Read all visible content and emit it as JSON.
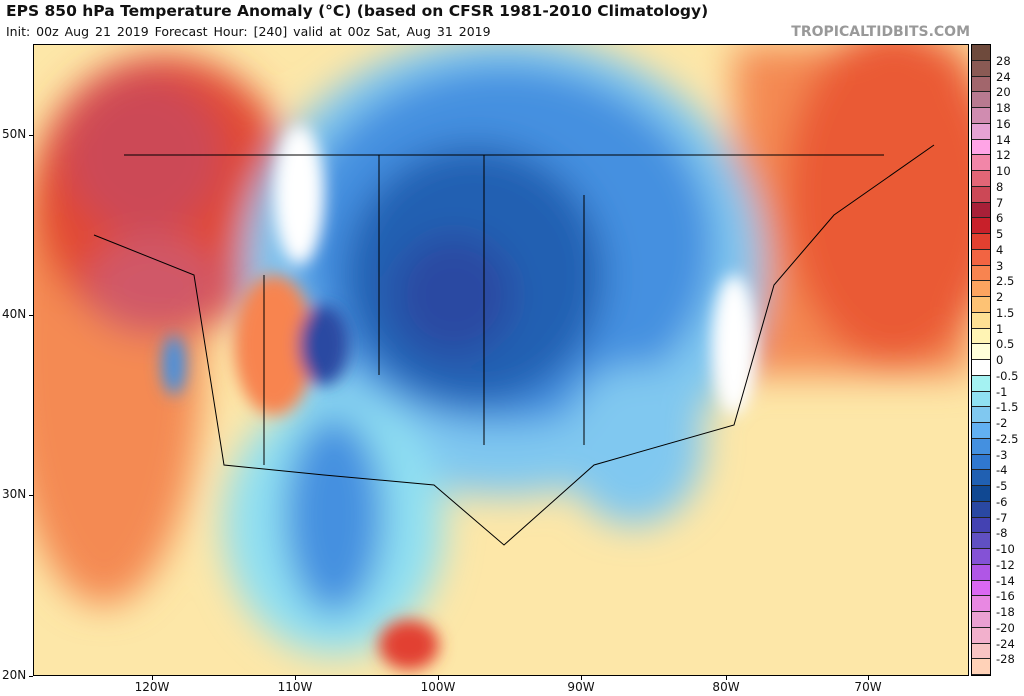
{
  "header": {
    "title": "EPS 850 hPa Temperature Anomaly (°C) (based on CFSR 1981-2010 Climatology)",
    "subtitle": "Init: 00z Aug 21 2019   Forecast Hour: [240]   valid at 00z Sat, Aug 31 2019",
    "brand": "TROPICALTIDBITS.COM"
  },
  "axes": {
    "lat": [
      "50N",
      "40N",
      "30N",
      "20N"
    ],
    "lon": [
      "120W",
      "110W",
      "100W",
      "90W",
      "80W",
      "70W"
    ]
  },
  "colorbar": {
    "labels": [
      "28",
      "24",
      "20",
      "18",
      "16",
      "14",
      "12",
      "10",
      "8",
      "7",
      "6",
      "5",
      "4",
      "3",
      "2.5",
      "2",
      "1.5",
      "1",
      "0.5",
      "0",
      "-0.5",
      "-1",
      "-1.5",
      "-2",
      "-2.5",
      "-3",
      "-4",
      "-5",
      "-6",
      "-7",
      "-8",
      "-10",
      "-12",
      "-14",
      "-16",
      "-18",
      "-20",
      "-24",
      "-28"
    ],
    "colors": [
      "#6e4a3c",
      "#8a5a54",
      "#a2666c",
      "#b87a90",
      "#d08cb0",
      "#e6a2d4",
      "#ffa4e6",
      "#f286a8",
      "#e26676",
      "#cc4856",
      "#a82038",
      "#c8202a",
      "#e24030",
      "#f26442",
      "#f88450",
      "#fca460",
      "#fdc274",
      "#fee094",
      "#fff4b4",
      "#ffffd8",
      "#ffffff",
      "#a4f2f2",
      "#90e0f2",
      "#80c8f0",
      "#62b0f2",
      "#4490e0",
      "#3078d0",
      "#2060b2",
      "#104892",
      "#2a48a2",
      "#4442b2",
      "#6050c2",
      "#8452d6",
      "#b056e6",
      "#da68f2",
      "#e888e2",
      "#eaa0d2",
      "#f2b0cc",
      "#f8c4c4",
      "#ffd2b8"
    ]
  }
}
